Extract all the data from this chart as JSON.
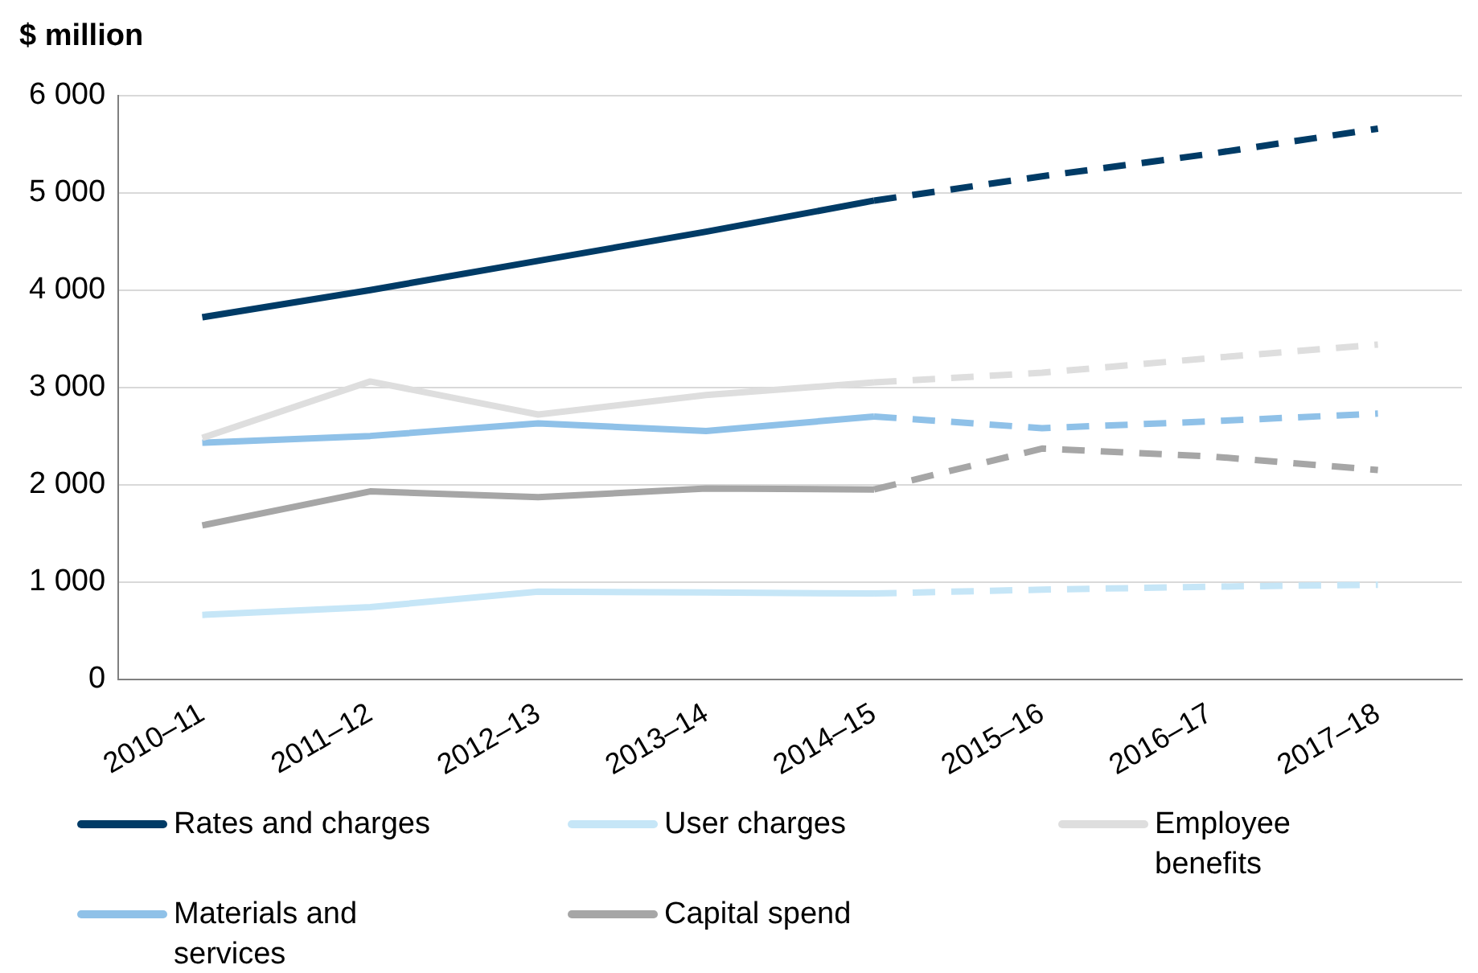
{
  "chart_data": {
    "type": "line",
    "ylabel": "$ million",
    "categories": [
      "2010–11",
      "2011–12",
      "2012–13",
      "2013–14",
      "2014–15",
      "2015–16",
      "2016–17",
      "2017–18"
    ],
    "ylim": [
      0,
      6000
    ],
    "yticks": [
      {
        "value": 0,
        "label": "0"
      },
      {
        "value": 1000,
        "label": "1 000"
      },
      {
        "value": 2000,
        "label": "2 000"
      },
      {
        "value": 3000,
        "label": "3 000"
      },
      {
        "value": 4000,
        "label": "4 000"
      },
      {
        "value": 5000,
        "label": "5 000"
      },
      {
        "value": 6000,
        "label": "6 000"
      }
    ],
    "grid": "y",
    "legend": "bottom",
    "marker": "none",
    "series": [
      {
        "name": "Rates and charges",
        "color": "#003b66",
        "line_style": "solid",
        "values": [
          3720,
          4000,
          4300,
          4600,
          4920,
          null,
          null,
          null
        ]
      },
      {
        "name": "User charges",
        "color": "#c6e6f7",
        "line_style": "solid",
        "values": [
          660,
          740,
          900,
          890,
          880,
          null,
          null,
          null
        ]
      },
      {
        "name": "Employee benefits",
        "color": "#dedede",
        "line_style": "solid",
        "values": [
          2480,
          3060,
          2720,
          2920,
          3050,
          null,
          null,
          null
        ]
      },
      {
        "name": "Materials and services",
        "color": "#8fc1e8",
        "line_style": "solid",
        "values": [
          2430,
          2500,
          2630,
          2550,
          2700,
          null,
          null,
          null
        ]
      },
      {
        "name": "Capital spend",
        "color": "#a6a6a6",
        "line_style": "solid",
        "values": [
          1580,
          1930,
          1870,
          1960,
          1950,
          null,
          null,
          null
        ]
      },
      {
        "color": "#003b66",
        "line_style": "dashed",
        "values": [
          null,
          null,
          null,
          null,
          4920,
          5170,
          5400,
          5660
        ]
      },
      {
        "color": "#c6e6f7",
        "line_style": "dashed",
        "values": [
          null,
          null,
          null,
          null,
          880,
          920,
          950,
          970
        ]
      },
      {
        "color": "#dedede",
        "line_style": "dashed",
        "values": [
          null,
          null,
          null,
          null,
          3050,
          3150,
          3300,
          3440
        ]
      },
      {
        "color": "#8fc1e8",
        "line_style": "dashed",
        "values": [
          null,
          null,
          null,
          null,
          2700,
          2580,
          2650,
          2730
        ]
      },
      {
        "color": "#a6a6a6",
        "line_style": "dashed",
        "values": [
          null,
          null,
          null,
          null,
          1950,
          2370,
          2290,
          2150
        ]
      }
    ]
  }
}
